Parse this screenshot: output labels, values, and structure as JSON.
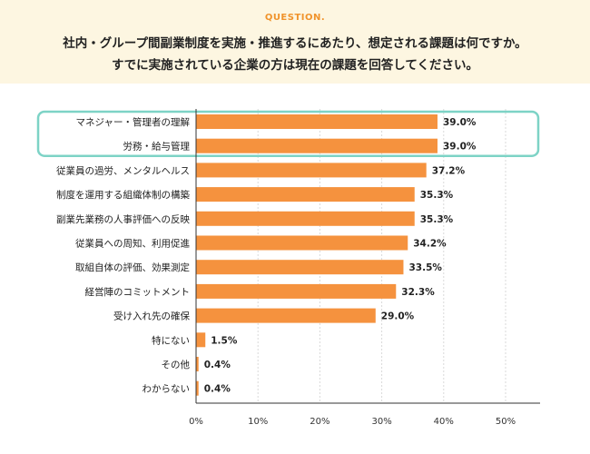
{
  "header": {
    "label": "QUESTION.",
    "line1": "社内・グループ間副業制度を実施・推進するにあたり、想定される課題は何ですか。",
    "line2": "すでに実施されている企業の方は現在の課題を回答してください。"
  },
  "colors": {
    "bar": "#f5923e",
    "highlight_border": "#7dd3c6",
    "header_bg": "#fdf6e1",
    "accent": "#f0932b"
  },
  "chart_data": {
    "type": "bar",
    "orientation": "horizontal",
    "categories": [
      "マネジャー・管理者の理解",
      "労務・給与管理",
      "従業員の過労、メンタルヘルス",
      "制度を運用する組織体制の構築",
      "副業先業務の人事評価への反映",
      "従業員への周知、利用促進",
      "取組自体の評価、効果測定",
      "経営陣のコミットメント",
      "受け入れ先の確保",
      "特にない",
      "その他",
      "わからない"
    ],
    "values": [
      39.0,
      39.0,
      37.2,
      35.3,
      35.3,
      34.2,
      33.5,
      32.3,
      29.0,
      1.5,
      0.4,
      0.4
    ],
    "value_labels": [
      "39.0%",
      "39.0%",
      "37.2%",
      "35.3%",
      "35.3%",
      "34.2%",
      "33.5%",
      "32.3%",
      "29.0%",
      "1.5%",
      "0.4%",
      "0.4%"
    ],
    "xlim": [
      0,
      55
    ],
    "ticks": [
      0,
      10,
      20,
      30,
      40,
      50
    ],
    "tick_labels": [
      "0%",
      "10%",
      "20%",
      "30%",
      "40%",
      "50%"
    ],
    "highlighted": [
      "マネジャー・管理者の理解",
      "労務・給与管理"
    ],
    "grid": true
  }
}
